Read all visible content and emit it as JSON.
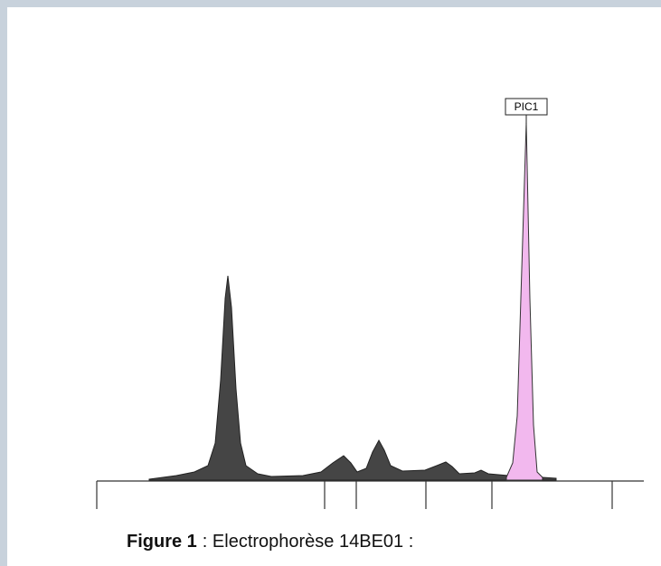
{
  "figure": {
    "label": "Figure 1",
    "caption": ": Electrophorèse 14BE01 :",
    "peak_label": "PIC1"
  }
}
